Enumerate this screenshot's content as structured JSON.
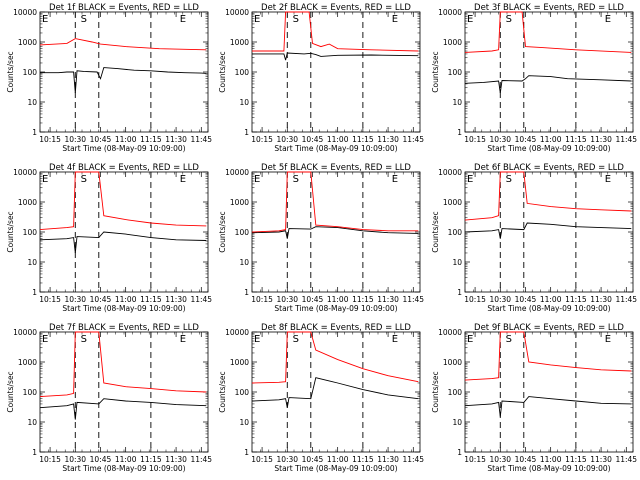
{
  "figure": {
    "background": "#ffffff",
    "axis_color": "#000000",
    "events_color": "#000000",
    "lld_color": "#ff0000",
    "x_tick_labels": [
      "10:15",
      "10:30",
      "10:45",
      "11:00",
      "11:15",
      "11:30",
      "11:45"
    ],
    "y_tick_labels": [
      "1",
      "10",
      "100",
      "1000",
      "10000"
    ],
    "ylabel": "Counts/sec",
    "xlabel": "Start Time (08-May-09 10:09:00)",
    "markers": [
      {
        "label": "E",
        "time_min": 0
      },
      {
        "label": "S",
        "time_min": 23
      },
      {
        "label": "E",
        "time_min": 82
      }
    ]
  },
  "chart_data": [
    {
      "type": "line",
      "title": "Det 1f BLACK = Events, RED = LLD",
      "xlabel": "Start Time (08-May-09 10:09:00)",
      "ylabel": "Counts/sec",
      "xlim": [
        "10:09",
        "11:49"
      ],
      "ylim": [
        1,
        10000
      ],
      "yscale": "log",
      "vlines": [
        "10:30",
        "10:44",
        "11:15"
      ],
      "series": [
        {
          "name": "Events",
          "color": "#000000",
          "points": [
            [
              "10:09",
              95
            ],
            [
              "10:20",
              95
            ],
            [
              "10:25",
              100
            ],
            [
              "10:29",
              100
            ],
            [
              "10:30",
              20
            ],
            [
              "10:31",
              110
            ],
            [
              "10:35",
              105
            ],
            [
              "10:43",
              100
            ],
            [
              "10:45",
              60
            ],
            [
              "10:47",
              140
            ],
            [
              "10:55",
              130
            ],
            [
              "11:05",
              115
            ],
            [
              "11:15",
              110
            ],
            [
              "11:25",
              100
            ],
            [
              "11:35",
              95
            ],
            [
              "11:45",
              92
            ],
            [
              "11:48",
              90
            ]
          ]
        },
        {
          "name": "LLD",
          "color": "#ff0000",
          "points": [
            [
              "10:09",
              800
            ],
            [
              "10:25",
              900
            ],
            [
              "10:30",
              1300
            ],
            [
              "10:40",
              1000
            ],
            [
              "10:45",
              850
            ],
            [
              "11:00",
              700
            ],
            [
              "11:20",
              600
            ],
            [
              "11:48",
              550
            ]
          ]
        }
      ]
    },
    {
      "type": "line",
      "title": "Det 2f BLACK = Events, RED = LLD",
      "xlabel": "Start Time (08-May-09 10:09:00)",
      "ylabel": "Counts/sec",
      "xlim": [
        "10:09",
        "11:49"
      ],
      "ylim": [
        1,
        10000
      ],
      "yscale": "log",
      "vlines": [
        "10:30",
        "10:44",
        "11:15"
      ],
      "series": [
        {
          "name": "Events",
          "color": "#000000",
          "points": [
            [
              "10:09",
              400
            ],
            [
              "10:28",
              400
            ],
            [
              "10:29",
              250
            ],
            [
              "10:30",
              430
            ],
            [
              "10:40",
              400
            ],
            [
              "10:44",
              420
            ],
            [
              "10:47",
              380
            ],
            [
              "10:50",
              330
            ],
            [
              "11:00",
              360
            ],
            [
              "11:20",
              370
            ],
            [
              "11:48",
              350
            ]
          ]
        },
        {
          "name": "LLD",
          "color": "#ff0000",
          "points": [
            [
              "10:09",
              500
            ],
            [
              "10:28",
              500
            ],
            [
              "10:29",
              10000
            ],
            [
              "10:43",
              10000
            ],
            [
              "10:45",
              900
            ],
            [
              "10:50",
              700
            ],
            [
              "10:55",
              850
            ],
            [
              "11:00",
              600
            ],
            [
              "11:20",
              550
            ],
            [
              "11:48",
              500
            ]
          ]
        }
      ]
    },
    {
      "type": "line",
      "title": "Det 3f BLACK = Events, RED = LLD",
      "xlabel": "Start Time (08-May-09 10:09:00)",
      "ylabel": "Counts/sec",
      "xlim": [
        "10:09",
        "11:49"
      ],
      "ylim": [
        1,
        10000
      ],
      "yscale": "log",
      "vlines": [
        "10:30",
        "10:44",
        "11:15"
      ],
      "series": [
        {
          "name": "Events",
          "color": "#000000",
          "points": [
            [
              "10:09",
              42
            ],
            [
              "10:20",
              45
            ],
            [
              "10:29",
              50
            ],
            [
              "10:30",
              20
            ],
            [
              "10:31",
              52
            ],
            [
              "10:43",
              50
            ],
            [
              "10:45",
              60
            ],
            [
              "10:47",
              75
            ],
            [
              "11:00",
              70
            ],
            [
              "11:10",
              60
            ],
            [
              "11:30",
              55
            ],
            [
              "11:48",
              50
            ]
          ]
        },
        {
          "name": "LLD",
          "color": "#ff0000",
          "points": [
            [
              "10:09",
              450
            ],
            [
              "10:25",
              500
            ],
            [
              "10:29",
              550
            ],
            [
              "10:30",
              10000
            ],
            [
              "10:43",
              10000
            ],
            [
              "10:45",
              700
            ],
            [
              "10:55",
              650
            ],
            [
              "11:15",
              550
            ],
            [
              "11:48",
              450
            ]
          ]
        }
      ]
    },
    {
      "type": "line",
      "title": "Det 4f BLACK = Events, RED = LLD",
      "xlabel": "Start Time (08-May-09 10:09:00)",
      "ylabel": "Counts/sec",
      "xlim": [
        "10:09",
        "11:49"
      ],
      "ylim": [
        1,
        10000
      ],
      "yscale": "log",
      "vlines": [
        "10:30",
        "10:44",
        "11:15"
      ],
      "series": [
        {
          "name": "Events",
          "color": "#000000",
          "points": [
            [
              "10:09",
              55
            ],
            [
              "10:25",
              60
            ],
            [
              "10:29",
              65
            ],
            [
              "10:30",
              20
            ],
            [
              "10:31",
              70
            ],
            [
              "10:44",
              65
            ],
            [
              "10:47",
              100
            ],
            [
              "11:00",
              85
            ],
            [
              "11:15",
              65
            ],
            [
              "11:30",
              55
            ],
            [
              "11:48",
              52
            ]
          ]
        },
        {
          "name": "LLD",
          "color": "#ff0000",
          "points": [
            [
              "10:09",
              120
            ],
            [
              "10:25",
              140
            ],
            [
              "10:29",
              150
            ],
            [
              "10:30",
              10000
            ],
            [
              "10:44",
              10000
            ],
            [
              "10:47",
              350
            ],
            [
              "11:00",
              260
            ],
            [
              "11:15",
              200
            ],
            [
              "11:30",
              170
            ],
            [
              "11:48",
              160
            ]
          ]
        }
      ]
    },
    {
      "type": "line",
      "title": "Det 5f BLACK = Events, RED = LLD",
      "xlabel": "Start Time (08-May-09 10:09:00)",
      "ylabel": "Counts/sec",
      "xlim": [
        "10:09",
        "11:49"
      ],
      "ylim": [
        1,
        10000
      ],
      "yscale": "log",
      "vlines": [
        "10:30",
        "10:44",
        "11:15"
      ],
      "series": [
        {
          "name": "Events",
          "color": "#000000",
          "points": [
            [
              "10:09",
              95
            ],
            [
              "10:25",
              100
            ],
            [
              "10:29",
              110
            ],
            [
              "10:30",
              60
            ],
            [
              "10:31",
              130
            ],
            [
              "10:44",
              125
            ],
            [
              "10:47",
              150
            ],
            [
              "11:00",
              140
            ],
            [
              "11:15",
              110
            ],
            [
              "11:30",
              95
            ],
            [
              "11:48",
              90
            ]
          ]
        },
        {
          "name": "LLD",
          "color": "#ff0000",
          "points": [
            [
              "10:09",
              100
            ],
            [
              "10:25",
              110
            ],
            [
              "10:29",
              120
            ],
            [
              "10:30",
              10000
            ],
            [
              "10:44",
              10000
            ],
            [
              "10:47",
              170
            ],
            [
              "11:00",
              150
            ],
            [
              "11:15",
              120
            ],
            [
              "11:30",
              110
            ],
            [
              "11:48",
              110
            ]
          ]
        }
      ]
    },
    {
      "type": "line",
      "title": "Det 6f BLACK = Events, RED = LLD",
      "xlabel": "Start Time (08-May-09 10:09:00)",
      "ylabel": "Counts/sec",
      "xlim": [
        "10:09",
        "11:49"
      ],
      "ylim": [
        1,
        10000
      ],
      "yscale": "log",
      "vlines": [
        "10:30",
        "10:44",
        "11:15"
      ],
      "series": [
        {
          "name": "Events",
          "color": "#000000",
          "points": [
            [
              "10:09",
              100
            ],
            [
              "10:25",
              110
            ],
            [
              "10:29",
              120
            ],
            [
              "10:30",
              60
            ],
            [
              "10:31",
              130
            ],
            [
              "10:44",
              120
            ],
            [
              "10:46",
              200
            ],
            [
              "11:00",
              180
            ],
            [
              "11:15",
              150
            ],
            [
              "11:30",
              140
            ],
            [
              "11:48",
              130
            ]
          ]
        },
        {
          "name": "LLD",
          "color": "#ff0000",
          "points": [
            [
              "10:09",
              250
            ],
            [
              "10:25",
              300
            ],
            [
              "10:29",
              350
            ],
            [
              "10:30",
              10000
            ],
            [
              "10:44",
              10000
            ],
            [
              "10:46",
              900
            ],
            [
              "11:00",
              700
            ],
            [
              "11:15",
              600
            ],
            [
              "11:30",
              550
            ],
            [
              "11:48",
              500
            ]
          ]
        }
      ]
    },
    {
      "type": "line",
      "title": "Det 7f BLACK = Events, RED = LLD",
      "xlabel": "Start Time (08-May-09 10:09:00)",
      "ylabel": "Counts/sec",
      "xlim": [
        "10:09",
        "11:49"
      ],
      "ylim": [
        1,
        10000
      ],
      "yscale": "log",
      "vlines": [
        "10:30",
        "10:44",
        "11:15"
      ],
      "series": [
        {
          "name": "Events",
          "color": "#000000",
          "points": [
            [
              "10:09",
              30
            ],
            [
              "10:25",
              35
            ],
            [
              "10:29",
              40
            ],
            [
              "10:30",
              12
            ],
            [
              "10:31",
              45
            ],
            [
              "10:44",
              40
            ],
            [
              "10:47",
              60
            ],
            [
              "11:00",
              50
            ],
            [
              "11:15",
              45
            ],
            [
              "11:30",
              38
            ],
            [
              "11:48",
              35
            ]
          ]
        },
        {
          "name": "LLD",
          "color": "#ff0000",
          "points": [
            [
              "10:09",
              70
            ],
            [
              "10:25",
              80
            ],
            [
              "10:29",
              90
            ],
            [
              "10:30",
              10000
            ],
            [
              "10:44",
              10000
            ],
            [
              "10:47",
              200
            ],
            [
              "11:00",
              150
            ],
            [
              "11:15",
              130
            ],
            [
              "11:30",
              110
            ],
            [
              "11:48",
              100
            ]
          ]
        }
      ]
    },
    {
      "type": "line",
      "title": "Det 8f BLACK = Events, RED = LLD",
      "xlabel": "Start Time (08-May-09 10:09:00)",
      "ylabel": "Counts/sec",
      "xlim": [
        "10:09",
        "11:49"
      ],
      "ylim": [
        1,
        10000
      ],
      "yscale": "log",
      "vlines": [
        "10:30",
        "10:44",
        "11:15"
      ],
      "series": [
        {
          "name": "Events",
          "color": "#000000",
          "points": [
            [
              "10:09",
              50
            ],
            [
              "10:25",
              55
            ],
            [
              "10:29",
              60
            ],
            [
              "10:30",
              30
            ],
            [
              "10:31",
              65
            ],
            [
              "10:44",
              60
            ],
            [
              "10:47",
              300
            ],
            [
              "11:00",
              200
            ],
            [
              "11:15",
              120
            ],
            [
              "11:30",
              80
            ],
            [
              "11:48",
              60
            ]
          ]
        },
        {
          "name": "LLD",
          "color": "#ff0000",
          "points": [
            [
              "10:09",
              200
            ],
            [
              "10:25",
              210
            ],
            [
              "10:29",
              220
            ],
            [
              "10:30",
              10000
            ],
            [
              "10:44",
              10000
            ],
            [
              "10:47",
              2500
            ],
            [
              "11:00",
              1200
            ],
            [
              "11:15",
              600
            ],
            [
              "11:30",
              350
            ],
            [
              "11:48",
              220
            ]
          ]
        }
      ]
    },
    {
      "type": "line",
      "title": "Det 9f BLACK = Events, RED = LLD",
      "xlabel": "Start Time (08-May-09 10:09:00)",
      "ylabel": "Counts/sec",
      "xlim": [
        "10:09",
        "11:49"
      ],
      "ylim": [
        1,
        10000
      ],
      "yscale": "log",
      "vlines": [
        "10:30",
        "10:44",
        "11:15"
      ],
      "series": [
        {
          "name": "Events",
          "color": "#000000",
          "points": [
            [
              "10:09",
              35
            ],
            [
              "10:25",
              40
            ],
            [
              "10:29",
              45
            ],
            [
              "10:30",
              15
            ],
            [
              "10:31",
              50
            ],
            [
              "10:44",
              45
            ],
            [
              "10:47",
              70
            ],
            [
              "11:00",
              60
            ],
            [
              "11:15",
              50
            ],
            [
              "11:30",
              42
            ],
            [
              "11:48",
              40
            ]
          ]
        },
        {
          "name": "LLD",
          "color": "#ff0000",
          "points": [
            [
              "10:09",
              250
            ],
            [
              "10:25",
              280
            ],
            [
              "10:29",
              300
            ],
            [
              "10:30",
              10000
            ],
            [
              "10:44",
              10000
            ],
            [
              "10:47",
              1000
            ],
            [
              "11:00",
              800
            ],
            [
              "11:15",
              650
            ],
            [
              "11:30",
              550
            ],
            [
              "11:48",
              500
            ]
          ]
        }
      ]
    }
  ]
}
